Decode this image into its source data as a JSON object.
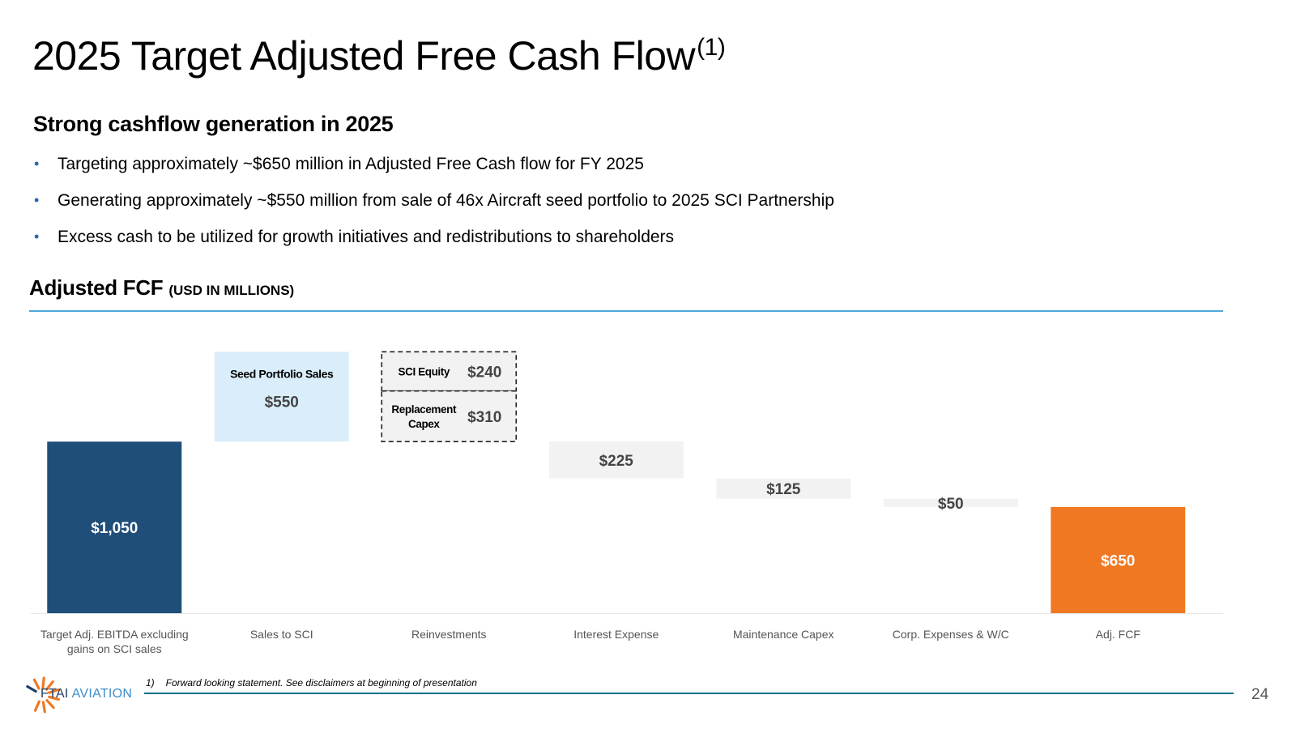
{
  "title": "2025 Target Adjusted Free Cash Flow",
  "title_sup": "(1)",
  "subtitle": "Strong cashflow generation in 2025",
  "bullets": [
    "Targeting approximately ~$650 million in Adjusted Free Cash flow for FY 2025",
    "Generating approximately ~$550 million from sale of 46x Aircraft seed portfolio to 2025 SCI Partnership",
    "Excess cash to be utilized for growth initiatives and redistributions to shareholders"
  ],
  "section": {
    "title": "Adjusted FCF",
    "unit": "(USD IN MILLIONS)"
  },
  "chart_data": {
    "type": "waterfall",
    "unit": "USD in millions",
    "steps": [
      {
        "category": "Target Adj. EBITDA excluding gains on SCI sales",
        "value": 1050,
        "label": "$1,050",
        "kind": "total",
        "color": "#1f4e79"
      },
      {
        "category": "Sales to SCI",
        "value": 550,
        "label": "$550",
        "kind": "increase",
        "note": "Seed Portfolio Sales",
        "color": "#d9eefa"
      },
      {
        "category": "Reinvestments",
        "value": -550,
        "kind": "decrease",
        "color": "#f2f2f2",
        "components": [
          {
            "name": "SCI Equity",
            "value": 240,
            "label": "$240"
          },
          {
            "name": "Replacement Capex",
            "value": 310,
            "label": "$310"
          }
        ]
      },
      {
        "category": "Interest Expense",
        "value": -225,
        "label": "$225",
        "kind": "decrease",
        "color": "#f2f2f2"
      },
      {
        "category": "Maintenance Capex",
        "value": -125,
        "label": "$125",
        "kind": "decrease",
        "color": "#f2f2f2"
      },
      {
        "category": "Corp. Expenses & W/C",
        "value": -50,
        "label": "$50",
        "kind": "decrease",
        "color": "#f2f2f2"
      },
      {
        "category": "Adj. FCF",
        "value": 650,
        "label": "$650",
        "kind": "total",
        "color": "#f07823"
      }
    ],
    "category_lines": [
      [
        "Target Adj. EBITDA excluding",
        "gains on SCI sales"
      ],
      [
        "Sales to SCI"
      ],
      [
        "Reinvestments"
      ],
      [
        "Interest Expense"
      ],
      [
        "Maintenance Capex"
      ],
      [
        "Corp. Expenses & W/C"
      ],
      [
        "Adj. FCF"
      ]
    ],
    "component_lines": [
      [
        "SCI Equity"
      ],
      [
        "Replacement",
        "Capex"
      ]
    ]
  },
  "footnote": {
    "number": "1)",
    "text": "Forward looking statement. See disclaimers at beginning of presentation"
  },
  "logo": {
    "brand": "FTAI",
    "sub": "AVIATION"
  },
  "page_number": "24"
}
